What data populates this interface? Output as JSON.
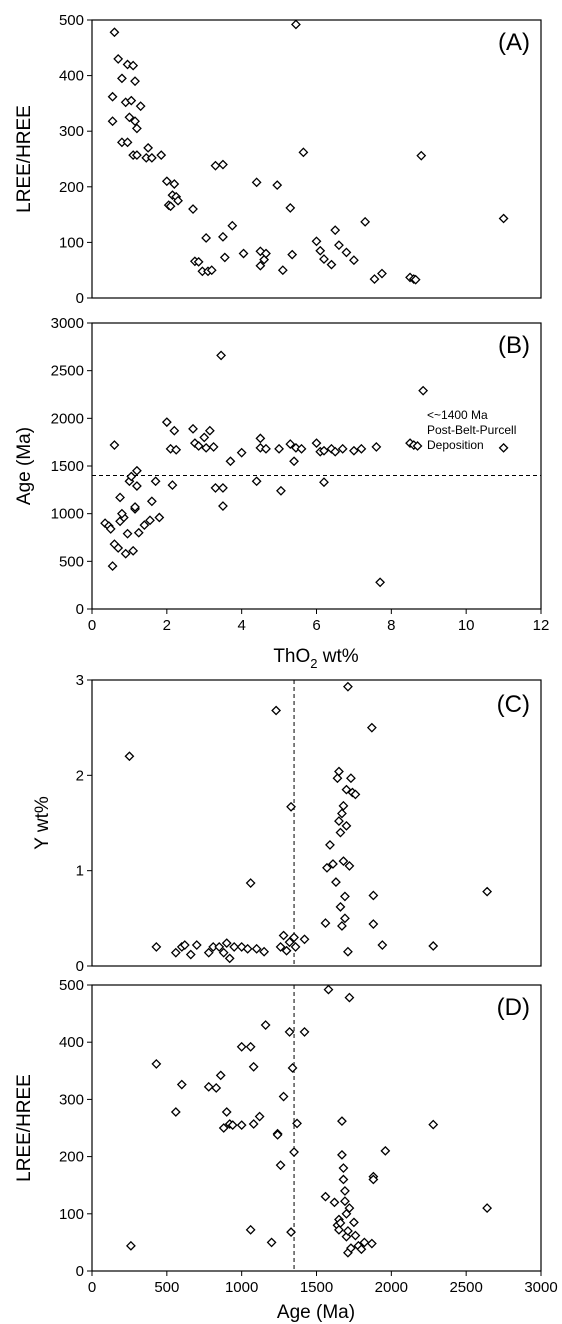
{
  "chart_data": [
    {
      "id": "A",
      "type": "scatter",
      "panel_label": "(A)",
      "xlabel": "",
      "ylabel": "LREE/HREE",
      "xlim": [
        0,
        12
      ],
      "ylim": [
        0,
        500
      ],
      "yticks": [
        0,
        100,
        200,
        300,
        400,
        500
      ],
      "points": [
        [
          0.6,
          478
        ],
        [
          0.55,
          362
        ],
        [
          0.55,
          318
        ],
        [
          0.7,
          430
        ],
        [
          0.8,
          395
        ],
        [
          0.95,
          420
        ],
        [
          1.1,
          418
        ],
        [
          0.9,
          352
        ],
        [
          1.05,
          355
        ],
        [
          1.15,
          390
        ],
        [
          1.0,
          325
        ],
        [
          1.15,
          318
        ],
        [
          1.3,
          345
        ],
        [
          1.2,
          305
        ],
        [
          0.8,
          280
        ],
        [
          0.95,
          280
        ],
        [
          1.1,
          257
        ],
        [
          1.2,
          257
        ],
        [
          1.45,
          252
        ],
        [
          1.5,
          270
        ],
        [
          1.6,
          252
        ],
        [
          1.85,
          257
        ],
        [
          2.0,
          210
        ],
        [
          2.05,
          167
        ],
        [
          2.1,
          165
        ],
        [
          2.15,
          185
        ],
        [
          2.2,
          205
        ],
        [
          2.25,
          182
        ],
        [
          2.3,
          175
        ],
        [
          2.7,
          160
        ],
        [
          2.75,
          66
        ],
        [
          2.85,
          65
        ],
        [
          2.95,
          48
        ],
        [
          3.05,
          108
        ],
        [
          3.1,
          48
        ],
        [
          3.2,
          50
        ],
        [
          3.3,
          238
        ],
        [
          3.5,
          240
        ],
        [
          3.5,
          110
        ],
        [
          3.55,
          73
        ],
        [
          3.75,
          130
        ],
        [
          4.05,
          80
        ],
        [
          4.4,
          208
        ],
        [
          4.5,
          84
        ],
        [
          4.5,
          58
        ],
        [
          4.6,
          69
        ],
        [
          4.65,
          80
        ],
        [
          4.95,
          203
        ],
        [
          5.1,
          50
        ],
        [
          5.3,
          162
        ],
        [
          5.35,
          78
        ],
        [
          5.45,
          492
        ],
        [
          5.65,
          262
        ],
        [
          6.0,
          102
        ],
        [
          6.1,
          85
        ],
        [
          6.2,
          70
        ],
        [
          6.4,
          60
        ],
        [
          6.5,
          122
        ],
        [
          6.6,
          95
        ],
        [
          6.8,
          82
        ],
        [
          7.0,
          68
        ],
        [
          7.3,
          137
        ],
        [
          7.55,
          34
        ],
        [
          7.75,
          44
        ],
        [
          8.5,
          37
        ],
        [
          8.6,
          34
        ],
        [
          8.65,
          33
        ],
        [
          8.8,
          256
        ],
        [
          11.0,
          143
        ]
      ]
    },
    {
      "id": "B",
      "type": "scatter",
      "panel_label": "(B)",
      "xlabel": "ThO2 wt%",
      "ylabel": "Age (Ma)",
      "xlim": [
        0,
        12
      ],
      "ylim": [
        0,
        3000
      ],
      "xticks": [
        0,
        2,
        4,
        6,
        8,
        10,
        12
      ],
      "yticks": [
        0,
        500,
        1000,
        1500,
        2000,
        2500,
        3000
      ],
      "reference_line": {
        "orientation": "horizontal",
        "value": 1400,
        "style": "dashed"
      },
      "annotation": [
        "<~1400 Ma",
        "Post-Belt-Purcell",
        "Deposition"
      ],
      "points": [
        [
          0.35,
          900
        ],
        [
          0.45,
          870
        ],
        [
          0.5,
          840
        ],
        [
          0.55,
          450
        ],
        [
          0.6,
          1720
        ],
        [
          0.6,
          680
        ],
        [
          0.7,
          640
        ],
        [
          0.75,
          1170
        ],
        [
          0.75,
          920
        ],
        [
          0.85,
          960
        ],
        [
          0.8,
          1000
        ],
        [
          0.9,
          580
        ],
        [
          0.95,
          790
        ],
        [
          1.0,
          1340
        ],
        [
          1.05,
          1390
        ],
        [
          1.1,
          610
        ],
        [
          1.15,
          1050
        ],
        [
          1.15,
          1070
        ],
        [
          1.2,
          1450
        ],
        [
          1.2,
          1290
        ],
        [
          1.25,
          800
        ],
        [
          1.4,
          880
        ],
        [
          1.55,
          930
        ],
        [
          1.6,
          1130
        ],
        [
          1.7,
          1340
        ],
        [
          1.8,
          960
        ],
        [
          2.0,
          1960
        ],
        [
          2.1,
          1680
        ],
        [
          2.15,
          1300
        ],
        [
          2.2,
          1870
        ],
        [
          2.25,
          1670
        ],
        [
          2.7,
          1890
        ],
        [
          2.75,
          1740
        ],
        [
          2.85,
          1710
        ],
        [
          3.0,
          1800
        ],
        [
          3.05,
          1690
        ],
        [
          3.15,
          1870
        ],
        [
          3.25,
          1700
        ],
        [
          3.3,
          1270
        ],
        [
          3.45,
          2660
        ],
        [
          3.5,
          1270
        ],
        [
          3.5,
          1080
        ],
        [
          3.7,
          1550
        ],
        [
          4.0,
          1640
        ],
        [
          4.4,
          1340
        ],
        [
          4.5,
          1790
        ],
        [
          4.5,
          1690
        ],
        [
          4.65,
          1680
        ],
        [
          5.0,
          1680
        ],
        [
          5.05,
          1240
        ],
        [
          5.3,
          1730
        ],
        [
          5.4,
          1550
        ],
        [
          5.45,
          1690
        ],
        [
          5.6,
          1680
        ],
        [
          6.0,
          1740
        ],
        [
          6.1,
          1650
        ],
        [
          6.2,
          1660
        ],
        [
          6.2,
          1330
        ],
        [
          6.4,
          1680
        ],
        [
          6.5,
          1650
        ],
        [
          6.7,
          1680
        ],
        [
          7.0,
          1660
        ],
        [
          7.2,
          1680
        ],
        [
          7.6,
          1700
        ],
        [
          7.7,
          280
        ],
        [
          8.5,
          1740
        ],
        [
          8.6,
          1720
        ],
        [
          8.7,
          1710
        ],
        [
          8.85,
          2290
        ],
        [
          11.0,
          1690
        ]
      ]
    },
    {
      "id": "C",
      "type": "scatter",
      "panel_label": "(C)",
      "xlabel": "",
      "ylabel": "Y wt%",
      "xlim": [
        0,
        3000
      ],
      "ylim": [
        0,
        3
      ],
      "yticks": [
        0,
        1,
        2,
        3
      ],
      "reference_line": {
        "orientation": "vertical",
        "value": 1350,
        "style": "dashed"
      },
      "points": [
        [
          250,
          2.2
        ],
        [
          430,
          0.2
        ],
        [
          560,
          0.14
        ],
        [
          600,
          0.2
        ],
        [
          620,
          0.22
        ],
        [
          660,
          0.12
        ],
        [
          700,
          0.22
        ],
        [
          780,
          0.14
        ],
        [
          810,
          0.2
        ],
        [
          850,
          0.2
        ],
        [
          880,
          0.14
        ],
        [
          900,
          0.24
        ],
        [
          920,
          0.08
        ],
        [
          950,
          0.2
        ],
        [
          1000,
          0.2
        ],
        [
          1040,
          0.18
        ],
        [
          1060,
          0.87
        ],
        [
          1100,
          0.18
        ],
        [
          1150,
          0.15
        ],
        [
          1230,
          2.68
        ],
        [
          1260,
          0.2
        ],
        [
          1280,
          0.32
        ],
        [
          1300,
          0.16
        ],
        [
          1320,
          0.25
        ],
        [
          1330,
          1.67
        ],
        [
          1350,
          0.3
        ],
        [
          1360,
          0.2
        ],
        [
          1420,
          0.28
        ],
        [
          1560,
          0.45
        ],
        [
          1570,
          1.03
        ],
        [
          1590,
          1.27
        ],
        [
          1610,
          1.07
        ],
        [
          1630,
          0.88
        ],
        [
          1640,
          1.97
        ],
        [
          1650,
          2.04
        ],
        [
          1650,
          1.52
        ],
        [
          1660,
          1.4
        ],
        [
          1660,
          0.62
        ],
        [
          1670,
          1.6
        ],
        [
          1670,
          0.42
        ],
        [
          1680,
          1.68
        ],
        [
          1680,
          1.1
        ],
        [
          1690,
          0.5
        ],
        [
          1690,
          0.73
        ],
        [
          1700,
          1.85
        ],
        [
          1700,
          1.47
        ],
        [
          1710,
          2.93
        ],
        [
          1710,
          0.15
        ],
        [
          1720,
          1.05
        ],
        [
          1730,
          1.97
        ],
        [
          1740,
          1.82
        ],
        [
          1760,
          1.8
        ],
        [
          1870,
          2.5
        ],
        [
          1880,
          0.74
        ],
        [
          1880,
          0.44
        ],
        [
          1940,
          0.22
        ],
        [
          2280,
          0.21
        ],
        [
          2640,
          0.78
        ]
      ]
    },
    {
      "id": "D",
      "type": "scatter",
      "panel_label": "(D)",
      "xlabel": "Age (Ma)",
      "ylabel": "LREE/HREE",
      "xlim": [
        0,
        3000
      ],
      "ylim": [
        0,
        500
      ],
      "xticks": [
        0,
        500,
        1000,
        1500,
        2000,
        2500,
        3000
      ],
      "yticks": [
        0,
        100,
        200,
        300,
        400,
        500
      ],
      "reference_line": {
        "orientation": "vertical",
        "value": 1350,
        "style": "dashed"
      },
      "points": [
        [
          260,
          44
        ],
        [
          430,
          362
        ],
        [
          560,
          278
        ],
        [
          600,
          326
        ],
        [
          780,
          322
        ],
        [
          830,
          320
        ],
        [
          860,
          342
        ],
        [
          880,
          250
        ],
        [
          900,
          278
        ],
        [
          920,
          257
        ],
        [
          940,
          255
        ],
        [
          1000,
          392
        ],
        [
          1000,
          255
        ],
        [
          1060,
          392
        ],
        [
          1060,
          72
        ],
        [
          1080,
          357
        ],
        [
          1080,
          257
        ],
        [
          1120,
          270
        ],
        [
          1160,
          430
        ],
        [
          1200,
          50
        ],
        [
          1240,
          240
        ],
        [
          1240,
          238
        ],
        [
          1260,
          185
        ],
        [
          1280,
          305
        ],
        [
          1320,
          418
        ],
        [
          1330,
          68
        ],
        [
          1340,
          355
        ],
        [
          1350,
          208
        ],
        [
          1370,
          258
        ],
        [
          1420,
          418
        ],
        [
          1560,
          130
        ],
        [
          1580,
          492
        ],
        [
          1620,
          120
        ],
        [
          1640,
          80
        ],
        [
          1650,
          90
        ],
        [
          1650,
          72
        ],
        [
          1660,
          84
        ],
        [
          1670,
          262
        ],
        [
          1670,
          203
        ],
        [
          1680,
          180
        ],
        [
          1680,
          160
        ],
        [
          1690,
          140
        ],
        [
          1690,
          122
        ],
        [
          1700,
          100
        ],
        [
          1700,
          60
        ],
        [
          1710,
          70
        ],
        [
          1710,
          32
        ],
        [
          1720,
          478
        ],
        [
          1720,
          110
        ],
        [
          1730,
          40
        ],
        [
          1750,
          85
        ],
        [
          1760,
          62
        ],
        [
          1780,
          44
        ],
        [
          1800,
          38
        ],
        [
          1820,
          50
        ],
        [
          1870,
          48
        ],
        [
          1880,
          165
        ],
        [
          1880,
          160
        ],
        [
          1960,
          210
        ],
        [
          2280,
          256
        ],
        [
          2640,
          110
        ]
      ]
    }
  ]
}
